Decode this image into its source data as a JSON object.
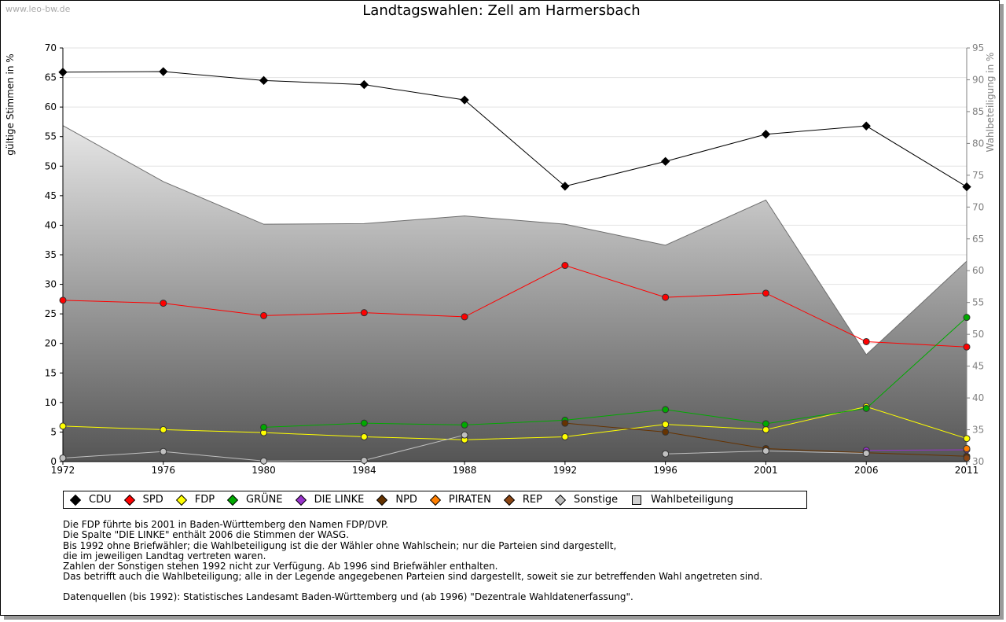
{
  "watermark": "www.leo-bw.de",
  "chart_data": {
    "type": "line",
    "title": "Landtagswahlen: Zell am Harmersbach",
    "ylabel": "gültige Stimmen in %",
    "y2label": "Wahlbeteiligung in %",
    "ylim": [
      0,
      70
    ],
    "y2lim": [
      30,
      95
    ],
    "yticks": [
      "0",
      "5",
      "10",
      "15",
      "20",
      "25",
      "30",
      "35",
      "40",
      "45",
      "50",
      "55",
      "60",
      "65",
      "70"
    ],
    "y2ticks": [
      "30",
      "35",
      "40",
      "45",
      "50",
      "55",
      "60",
      "65",
      "70",
      "75",
      "80",
      "85",
      "90",
      "95"
    ],
    "x": [
      "1972",
      "1976",
      "1980",
      "1984",
      "1988",
      "1992",
      "1996",
      "2001",
      "2006",
      "2011"
    ],
    "grid": true,
    "legend_position": "bottom",
    "series": [
      {
        "name": "CDU",
        "color": "#000000",
        "values": [
          65.9,
          66.0,
          64.5,
          63.8,
          61.2,
          46.6,
          50.8,
          55.4,
          56.8,
          46.5
        ]
      },
      {
        "name": "SPD",
        "color": "#ff0000",
        "values": [
          27.3,
          26.8,
          24.7,
          25.2,
          24.5,
          33.2,
          27.8,
          28.5,
          20.3,
          19.4
        ]
      },
      {
        "name": "FDP",
        "color": "#ffff00",
        "values": [
          6.0,
          5.4,
          4.9,
          4.2,
          3.7,
          4.2,
          6.3,
          5.4,
          9.3,
          3.9
        ]
      },
      {
        "name": "GRÜNE",
        "color": "#00aa00",
        "values": [
          null,
          null,
          5.8,
          6.5,
          6.2,
          7.0,
          8.8,
          6.4,
          9.0,
          24.4
        ]
      },
      {
        "name": "DIE LINKE",
        "color": "#9933cc",
        "values": [
          null,
          null,
          null,
          null,
          null,
          null,
          null,
          null,
          1.9,
          2.0
        ]
      },
      {
        "name": "NPD",
        "color": "#663300",
        "values": [
          null,
          null,
          null,
          null,
          null,
          6.5,
          5.0,
          2.2,
          1.5,
          0.9
        ]
      },
      {
        "name": "PIRATEN",
        "color": "#ff7f00",
        "values": [
          null,
          null,
          null,
          null,
          null,
          null,
          null,
          null,
          null,
          2.2
        ]
      },
      {
        "name": "REP",
        "color": "#8b4513",
        "values": [
          null,
          null,
          null,
          null,
          null,
          null,
          null,
          null,
          null,
          0.6
        ]
      },
      {
        "name": "Sonstige",
        "color": "#c0c0c0",
        "values": [
          0.6,
          1.7,
          0.1,
          0.2,
          4.5,
          null,
          1.3,
          1.8,
          1.4,
          null
        ]
      }
    ],
    "turnout": {
      "name": "Wahlbeteiligung",
      "values": [
        82.8,
        74.0,
        67.3,
        67.4,
        68.6,
        67.3,
        64.0,
        71.1,
        46.8,
        61.5
      ]
    }
  },
  "notes": [
    "Die FDP führte bis 2001 in Baden-Württemberg den Namen FDP/DVP.",
    "Die Spalte \"DIE LINKE\" enthält 2006 die Stimmen der WASG.",
    "Bis 1992 ohne Briefwähler; die Wahlbeteiligung ist die der Wähler ohne Wahlschein; nur die Parteien sind dargestellt,",
    "die im jeweiligen Landtag vertreten waren.",
    "Zahlen der Sonstigen stehen 1992 nicht zur Verfügung. Ab 1996 sind Briefwähler enthalten.",
    "Das betrifft auch die Wahlbeteiligung; alle in der Legende angegebenen Parteien sind dargestellt, soweit sie zur betreffenden Wahl angetreten sind."
  ],
  "source": "Datenquellen (bis 1992): Statistisches Landesamt Baden-Württemberg und (ab 1996) \"Dezentrale Wahldatenerfassung\"."
}
